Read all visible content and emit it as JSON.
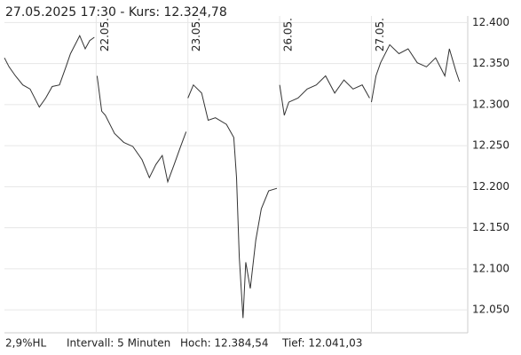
{
  "chart_data": {
    "type": "line",
    "title": "27.05.2025  17:30  - Kurs: 12.324,78",
    "annotations": [
      "2,9%HL",
      "Intervall: 5 Minuten",
      "Hoch: 12.384,54",
      "Tief: 12.041,03"
    ],
    "xlim": [
      0,
      5.05
    ],
    "ylim": [
      12022,
      12408
    ],
    "xticks": [
      {
        "value": 1,
        "label": "22.05."
      },
      {
        "value": 2,
        "label": "23.05."
      },
      {
        "value": 3,
        "label": "26.05."
      },
      {
        "value": 4,
        "label": "27.05."
      }
    ],
    "yticks": [
      {
        "value": 12050,
        "label": "12.050"
      },
      {
        "value": 12100,
        "label": "12.100"
      },
      {
        "value": 12150,
        "label": "12.150"
      },
      {
        "value": 12200,
        "label": "12.200"
      },
      {
        "value": 12250,
        "label": "12.250"
      },
      {
        "value": 12300,
        "label": "12.300"
      },
      {
        "value": 12350,
        "label": "12.350"
      },
      {
        "value": 12400,
        "label": "12.400"
      }
    ],
    "grid": true,
    "color": "#333333",
    "x": [
      0,
      0.05,
      0.12,
      0.2,
      0.28,
      0.38,
      0.45,
      0.52,
      0.6,
      0.67,
      0.72,
      0.78,
      0.82,
      0.88,
      0.93,
      0.98,
      0.995,
      1.01,
      1.06,
      1.1,
      1.2,
      1.3,
      1.4,
      1.5,
      1.58,
      1.65,
      1.72,
      1.78,
      1.85,
      1.92,
      1.98,
      1.995,
      2.0,
      2.06,
      2.15,
      2.22,
      2.3,
      2.42,
      2.5,
      2.53,
      2.56,
      2.6,
      2.63,
      2.68,
      2.74,
      2.8,
      2.88,
      2.97,
      2.99,
      3.0,
      3.05,
      3.1,
      3.2,
      3.3,
      3.4,
      3.5,
      3.6,
      3.7,
      3.8,
      3.9,
      3.98,
      3.99,
      4.0,
      4.05,
      4.1,
      4.2,
      4.3,
      4.4,
      4.5,
      4.6,
      4.7,
      4.8,
      4.85,
      4.92,
      4.96
    ],
    "values": [
      12357,
      12346,
      12335,
      12324,
      12319,
      12297,
      12308,
      12322,
      12324,
      12346,
      12362,
      12375,
      12384,
      12368,
      12378,
      12382,
      null,
      12335,
      12292,
      12287,
      12265,
      12254,
      12249,
      12233,
      12211,
      12227,
      12238,
      12206,
      12227,
      12249,
      12267,
      null,
      12308,
      12324,
      12314,
      12281,
      12284,
      12276,
      12260,
      12211,
      12114,
      12040,
      12108,
      12076,
      12135,
      12173,
      12195,
      12198,
      null,
      12324,
      12287,
      12303,
      12308,
      12319,
      12324,
      12335,
      12314,
      12330,
      12319,
      12324,
      12308,
      null,
      12303,
      12335,
      12351,
      12373,
      12362,
      12368,
      12351,
      12346,
      12357,
      12335,
      12368,
      12341,
      12328
    ]
  }
}
